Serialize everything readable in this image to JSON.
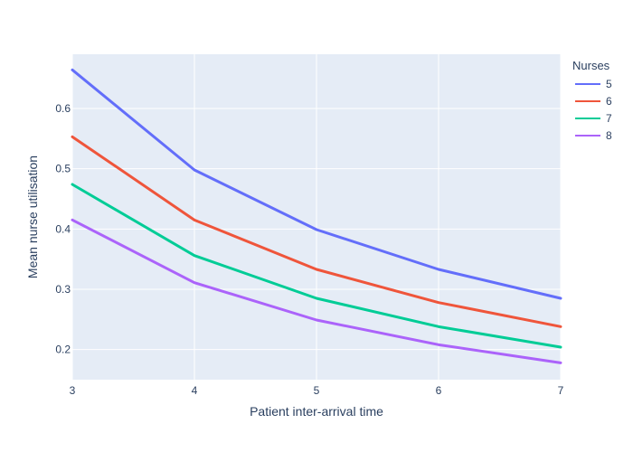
{
  "chart_data": {
    "type": "line",
    "xlabel": "Patient inter-arrival time",
    "ylabel": "Mean nurse utilisation",
    "xlim": [
      3,
      7
    ],
    "ylim": [
      0.15,
      0.69
    ],
    "x_ticks": [
      3,
      4,
      5,
      6,
      7
    ],
    "y_ticks": [
      0.2,
      0.3,
      0.4,
      0.5,
      0.6
    ],
    "y_tick_labels": [
      "0.2",
      "0.3",
      "0.4",
      "0.5",
      "0.6"
    ],
    "grid": true,
    "legend": {
      "title": "Nurses",
      "placement": "right"
    },
    "x": [
      3,
      4,
      5,
      6,
      7
    ],
    "series": [
      {
        "name": "5",
        "color": "#636efa",
        "values": [
          0.664,
          0.498,
          0.399,
          0.333,
          0.285
        ]
      },
      {
        "name": "6",
        "color": "#ef553b",
        "values": [
          0.553,
          0.415,
          0.333,
          0.278,
          0.238
        ]
      },
      {
        "name": "7",
        "color": "#00cc96",
        "values": [
          0.474,
          0.356,
          0.285,
          0.238,
          0.204
        ]
      },
      {
        "name": "8",
        "color": "#ab63fa",
        "values": [
          0.415,
          0.311,
          0.249,
          0.208,
          0.178
        ]
      }
    ]
  }
}
